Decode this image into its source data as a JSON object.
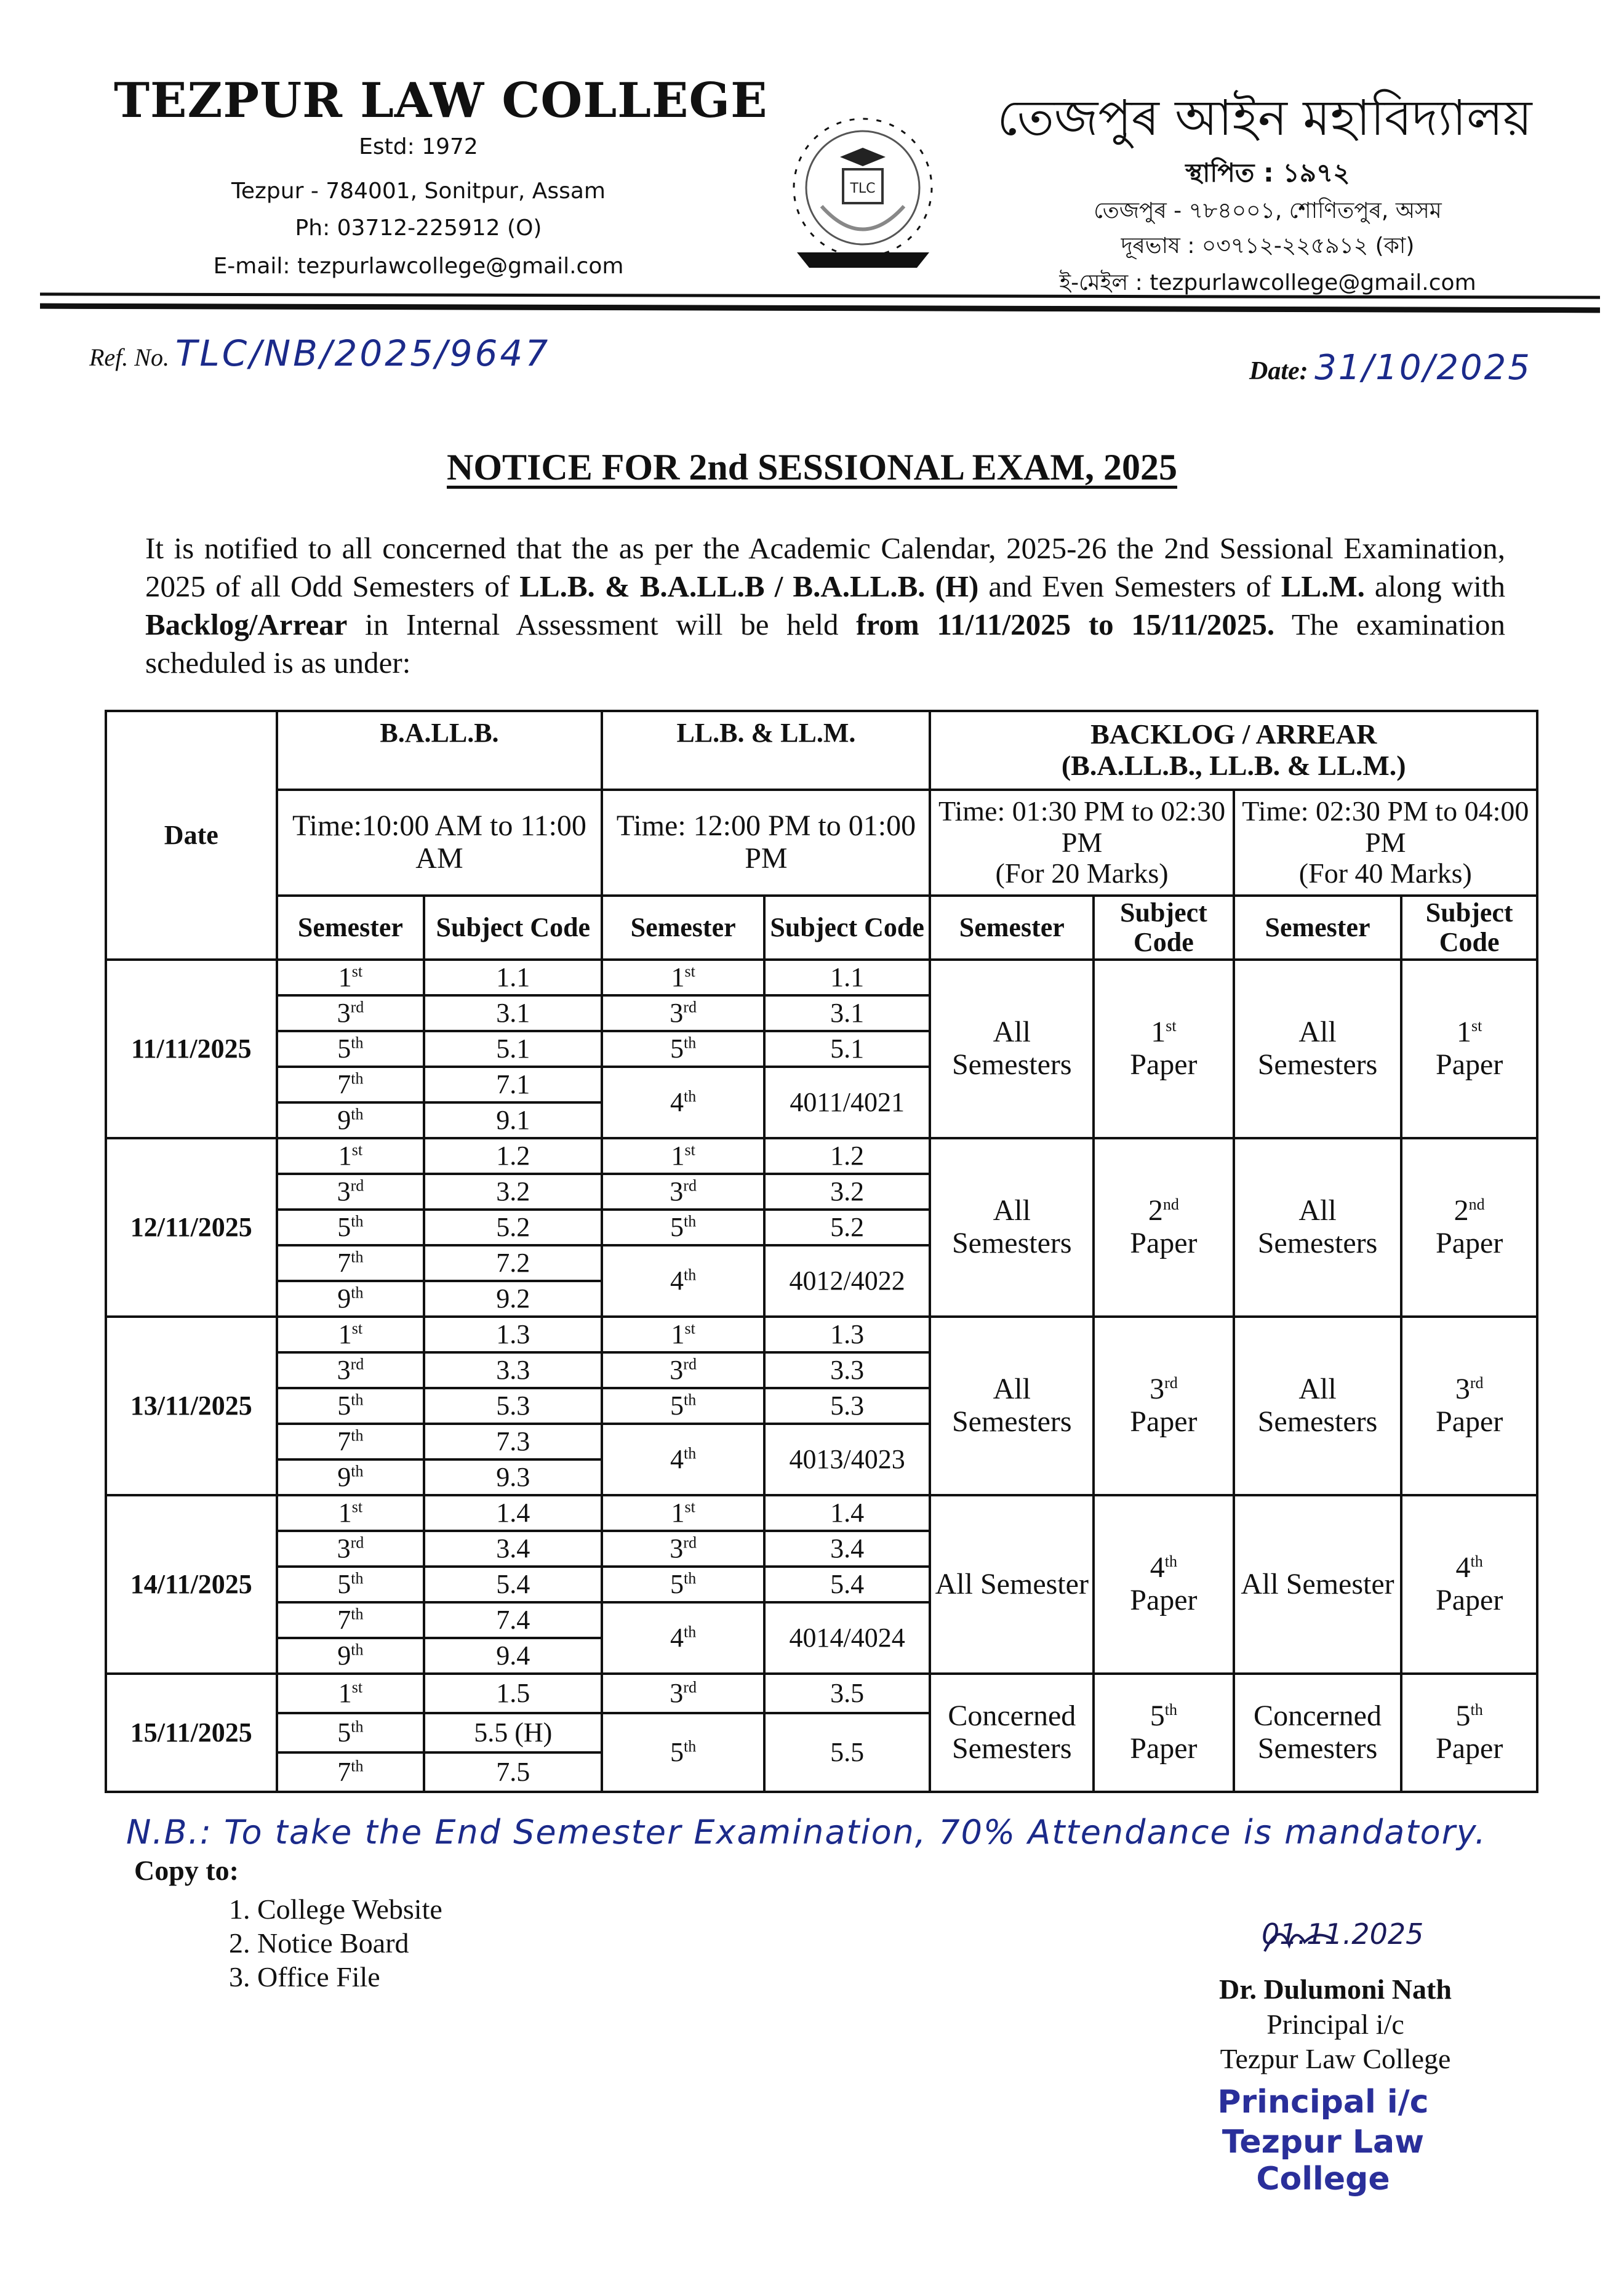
{
  "header": {
    "college_name": "TEZPUR LAW COLLEGE",
    "estd": "Estd: 1972",
    "address": "Tezpur - 784001, Sonitpur, Assam",
    "phone": "Ph: 03712-225912 (O)",
    "email": "E-mail: tezpurlawcollege@gmail.com",
    "college_name_assamese": "তেজপুৰ আইন মহাবিদ্যালয়",
    "estd_assamese": "স্থাপিত : ১৯৭২",
    "address_assamese": "তেজপুৰ - ৭৮৪০০১, শোণিতপুৰ, অসম",
    "phone_assamese": "দূৰভাষ : ০৩৭১২-২২৫৯১২ (কা)",
    "email_assamese": "ই-মেইল : tezpurlawcollege@gmail.com",
    "logo_icon": "college-emblem"
  },
  "ref": {
    "label": "Ref. No.",
    "value": "TLC/NB/2025/9647"
  },
  "date": {
    "label": "Date:",
    "value": "31/10/2025"
  },
  "title": "NOTICE FOR 2nd SESSIONAL EXAM, 2025",
  "paragraph": {
    "p1": "It is notified to all concerned that the as per the Academic Calendar, 2025-26 the 2nd Sessional Examination, 2025 of all Odd Semesters of ",
    "b1": "LL.B. & B.A.LL.B / B.A.LL.B. (H)",
    "p2": " and Even Semesters of ",
    "b2": "LL.M.",
    "p3": " along with ",
    "b3": "Backlog/Arrear",
    "p4": " in Internal Assessment will be held ",
    "b4": "from 11/11/2025 to 15/11/2025.",
    "p5": " The examination scheduled is as under:"
  },
  "table": {
    "headers": {
      "date": "Date",
      "ballb": "B.A.LL.B.",
      "llb": "LL.B. & LL.M.",
      "backlog": "BACKLOG / ARREAR",
      "backlog_sub": "(B.A.LL.B., LL.B. & LL.M.)",
      "ballb_time": "Time:10:00 AM to 11:00 AM",
      "llb_time": "Time: 12:00 PM to 01:00 PM",
      "backlog20_time": "Time: 01:30 PM to 02:30 PM",
      "backlog20_marks": "(For 20 Marks)",
      "backlog40_time": "Time: 02:30 PM to 04:00 PM",
      "backlog40_marks": "(For 40 Marks)",
      "semester": "Semester",
      "subject_code": "Subject Code"
    },
    "groups": [
      {
        "date": "11/11/2025",
        "ballb": [
          {
            "n": "1",
            "s": "st",
            "code": "1.1"
          },
          {
            "n": "3",
            "s": "rd",
            "code": "3.1"
          },
          {
            "n": "5",
            "s": "th",
            "code": "5.1"
          },
          {
            "n": "7",
            "s": "th",
            "code": "7.1"
          },
          {
            "n": "9",
            "s": "th",
            "code": "9.1"
          }
        ],
        "llb": [
          {
            "n": "1",
            "s": "st",
            "code": "1.1",
            "span": 1
          },
          {
            "n": "3",
            "s": "rd",
            "code": "3.1",
            "span": 1
          },
          {
            "n": "5",
            "s": "th",
            "code": "5.1",
            "span": 1
          },
          {
            "n": "4",
            "s": "th",
            "code": "4011/4021",
            "span": 2
          }
        ],
        "b20": {
          "sem": "All Semesters",
          "pn": "1",
          "ps": "st",
          "paper": "Paper"
        },
        "b40": {
          "sem": "All Semesters",
          "pn": "1",
          "ps": "st",
          "paper": "Paper"
        }
      },
      {
        "date": "12/11/2025",
        "ballb": [
          {
            "n": "1",
            "s": "st",
            "code": "1.2"
          },
          {
            "n": "3",
            "s": "rd",
            "code": "3.2"
          },
          {
            "n": "5",
            "s": "th",
            "code": "5.2"
          },
          {
            "n": "7",
            "s": "th",
            "code": "7.2"
          },
          {
            "n": "9",
            "s": "th",
            "code": "9.2"
          }
        ],
        "llb": [
          {
            "n": "1",
            "s": "st",
            "code": "1.2",
            "span": 1
          },
          {
            "n": "3",
            "s": "rd",
            "code": "3.2",
            "span": 1
          },
          {
            "n": "5",
            "s": "th",
            "code": "5.2",
            "span": 1
          },
          {
            "n": "4",
            "s": "th",
            "code": "4012/4022",
            "span": 2
          }
        ],
        "b20": {
          "sem": "All Semesters",
          "pn": "2",
          "ps": "nd",
          "paper": "Paper"
        },
        "b40": {
          "sem": "All Semesters",
          "pn": "2",
          "ps": "nd",
          "paper": "Paper"
        }
      },
      {
        "date": "13/11/2025",
        "ballb": [
          {
            "n": "1",
            "s": "st",
            "code": "1.3"
          },
          {
            "n": "3",
            "s": "rd",
            "code": "3.3"
          },
          {
            "n": "5",
            "s": "th",
            "code": "5.3"
          },
          {
            "n": "7",
            "s": "th",
            "code": "7.3"
          },
          {
            "n": "9",
            "s": "th",
            "code": "9.3"
          }
        ],
        "llb": [
          {
            "n": "1",
            "s": "st",
            "code": "1.3",
            "span": 1
          },
          {
            "n": "3",
            "s": "rd",
            "code": "3.3",
            "span": 1
          },
          {
            "n": "5",
            "s": "th",
            "code": "5.3",
            "span": 1
          },
          {
            "n": "4",
            "s": "th",
            "code": "4013/4023",
            "span": 2
          }
        ],
        "b20": {
          "sem": "All Semesters",
          "pn": "3",
          "ps": "rd",
          "paper": "Paper"
        },
        "b40": {
          "sem": "All Semesters",
          "pn": "3",
          "ps": "rd",
          "paper": "Paper"
        }
      },
      {
        "date": "14/11/2025",
        "ballb": [
          {
            "n": "1",
            "s": "st",
            "code": "1.4"
          },
          {
            "n": "3",
            "s": "rd",
            "code": "3.4"
          },
          {
            "n": "5",
            "s": "th",
            "code": "5.4"
          },
          {
            "n": "7",
            "s": "th",
            "code": "7.4"
          },
          {
            "n": "9",
            "s": "th",
            "code": "9.4"
          }
        ],
        "llb": [
          {
            "n": "1",
            "s": "st",
            "code": "1.4",
            "span": 1
          },
          {
            "n": "3",
            "s": "rd",
            "code": "3.4",
            "span": 1
          },
          {
            "n": "5",
            "s": "th",
            "code": "5.4",
            "span": 1
          },
          {
            "n": "4",
            "s": "th",
            "code": "4014/4024",
            "span": 2
          }
        ],
        "b20": {
          "sem": "All Semester",
          "pn": "4",
          "ps": "th",
          "paper": "Paper"
        },
        "b40": {
          "sem": "All Semester",
          "pn": "4",
          "ps": "th",
          "paper": "Paper"
        }
      },
      {
        "date": "15/11/2025",
        "ballb": [
          {
            "n": "1",
            "s": "st",
            "code": "1.5"
          },
          {
            "n": "5",
            "s": "th",
            "code": "5.5 (H)"
          },
          {
            "n": "7",
            "s": "th",
            "code": "7.5"
          }
        ],
        "llb": [
          {
            "n": "3",
            "s": "rd",
            "code": "3.5",
            "span": 1
          },
          {
            "n": "5",
            "s": "th",
            "code": "5.5",
            "span": 2
          }
        ],
        "b20": {
          "sem": "Concerned Semesters",
          "pn": "5",
          "ps": "th",
          "paper": "Paper"
        },
        "b40": {
          "sem": "Concerned Semesters",
          "pn": "5",
          "ps": "th",
          "paper": "Paper"
        }
      }
    ]
  },
  "nb": "N.B.: To take the End Semester Examination, 70% Attendance is mandatory.",
  "copy_to": {
    "label": "Copy to:",
    "items": [
      "1. College Website",
      "2. Notice Board",
      "3. Office File"
    ]
  },
  "signature": {
    "handwritten_date": "01.11.2025",
    "name": "Dr. Dulumoni Nath",
    "designation": "Principal i/c",
    "institution": "Tezpur Law College",
    "stamp_line1": "Principal i/c",
    "stamp_line2": "Tezpur Law College"
  }
}
